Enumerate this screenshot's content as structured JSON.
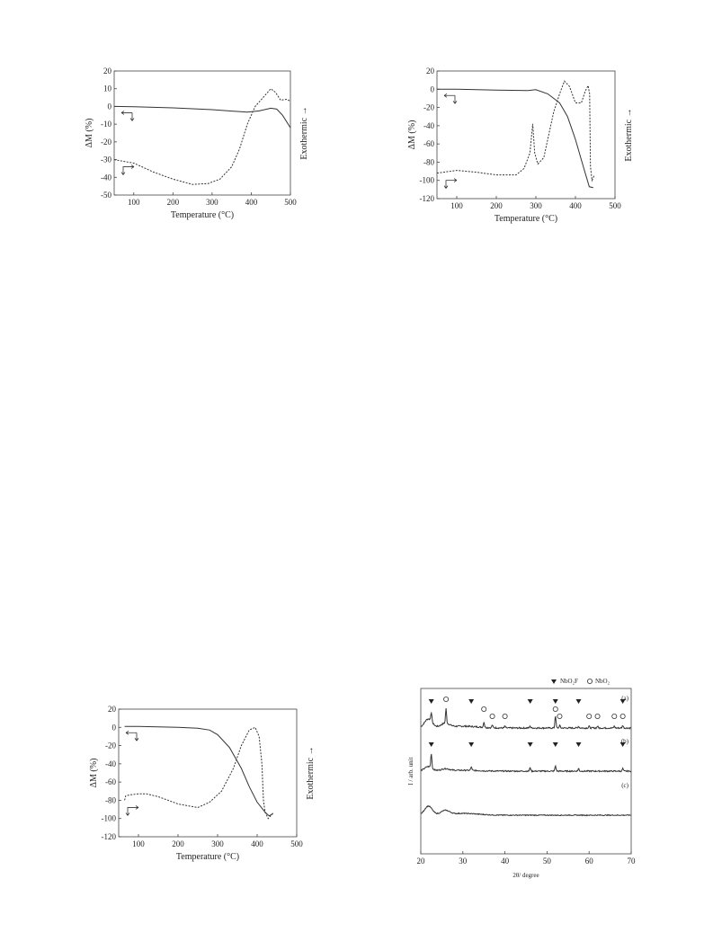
{
  "chart_data": [
    {
      "type": "line",
      "xlabel": "Temperature (°C)",
      "ylabel": "ΔM (%)",
      "y2label": "Exothermic →",
      "xlim": [
        50,
        500
      ],
      "ylim": [
        -50,
        20
      ],
      "xticks": [
        100,
        200,
        300,
        400,
        500
      ],
      "yticks": [
        20,
        10,
        0,
        -10,
        -20,
        -30,
        -40,
        -50
      ],
      "series": [
        {
          "style": "solid",
          "x": [
            50,
            100,
            200,
            300,
            360,
            390,
            420,
            450,
            465,
            480,
            500
          ],
          "y": [
            0,
            -0.2,
            -0.8,
            -1.8,
            -2.8,
            -3.2,
            -2.5,
            -1,
            -1.5,
            -5,
            -12
          ]
        },
        {
          "style": "dashed",
          "x": [
            50,
            100,
            150,
            200,
            250,
            290,
            320,
            350,
            370,
            390,
            410,
            430,
            450,
            462,
            475,
            490,
            500
          ],
          "y": [
            -30,
            -32,
            -37,
            -41,
            -44,
            -43.5,
            -41,
            -34,
            -24,
            -10,
            0,
            5,
            10,
            8,
            3.5,
            4,
            3
          ]
        }
      ]
    },
    {
      "type": "line",
      "xlabel": "Temperature (°C)",
      "ylabel": "ΔM (%)",
      "y2label": "Exothermic →",
      "xlim": [
        50,
        500
      ],
      "ylim": [
        -120,
        20
      ],
      "xticks": [
        100,
        200,
        300,
        400,
        500
      ],
      "yticks": [
        20,
        0,
        -20,
        -40,
        -60,
        -80,
        -100,
        -120
      ],
      "series": [
        {
          "style": "solid",
          "x": [
            50,
            100,
            200,
            280,
            300,
            330,
            360,
            380,
            400,
            420,
            435,
            445
          ],
          "y": [
            0,
            0,
            -1,
            -1.5,
            -0.5,
            -5,
            -15,
            -30,
            -55,
            -85,
            -107,
            -108
          ]
        },
        {
          "style": "dashed",
          "x": [
            50,
            100,
            150,
            200,
            250,
            270,
            285,
            292,
            297,
            305,
            320,
            345,
            360,
            372,
            385,
            400,
            415,
            425,
            432,
            436,
            438,
            442,
            447
          ],
          "y": [
            -92,
            -89,
            -91,
            -94,
            -94,
            -87,
            -70,
            -38,
            -70,
            -82,
            -75,
            -25,
            -5,
            9,
            3,
            -15,
            -15,
            -2,
            4,
            -5,
            -85,
            -100,
            -95
          ]
        }
      ]
    },
    {
      "type": "line",
      "xlabel": "Temperature (°C)",
      "ylabel": "ΔM (%)",
      "y2label": "Exothermic →",
      "xlim": [
        50,
        500
      ],
      "ylim": [
        -120,
        20
      ],
      "xticks": [
        100,
        200,
        300,
        400,
        500
      ],
      "yticks": [
        20,
        0,
        -20,
        -40,
        -60,
        -80,
        -100,
        -120
      ],
      "series": [
        {
          "style": "solid",
          "x": [
            65,
            100,
            200,
            250,
            280,
            300,
            330,
            360,
            380,
            400,
            420,
            430,
            440
          ],
          "y": [
            1,
            1,
            0,
            -1,
            -3,
            -8,
            -22,
            -45,
            -65,
            -82,
            -93,
            -97,
            -95
          ]
        },
        {
          "style": "dashed",
          "x": [
            65,
            68,
            80,
            100,
            120,
            150,
            200,
            250,
            280,
            310,
            340,
            360,
            380,
            395,
            405,
            412,
            416,
            420,
            428,
            436,
            440
          ],
          "y": [
            -80,
            -75,
            -74,
            -73,
            -73,
            -76,
            -84,
            -88,
            -82,
            -70,
            -45,
            -20,
            -3,
            0,
            -10,
            -40,
            -80,
            -93,
            -100,
            -96,
            -94
          ]
        }
      ]
    },
    {
      "type": "line",
      "xlabel": "2θ/ degree",
      "ylabel": "I / arb. unit",
      "xlim": [
        20,
        70
      ],
      "xticks": [
        20,
        30,
        40,
        50,
        60,
        70
      ],
      "legend": [
        "NbO₂F",
        "NbO₂"
      ],
      "trace_labels": [
        "(a)",
        "(b)",
        "(c)"
      ],
      "peaks_NbO2F": {
        "a": [
          22.5,
          32,
          46,
          52,
          57.5,
          68
        ],
        "b": [
          22.5,
          32,
          46,
          52,
          57.5,
          68
        ]
      },
      "peaks_NbO2": {
        "a": [
          26,
          35,
          37,
          40,
          52,
          53,
          60,
          62,
          66,
          68
        ]
      }
    }
  ]
}
